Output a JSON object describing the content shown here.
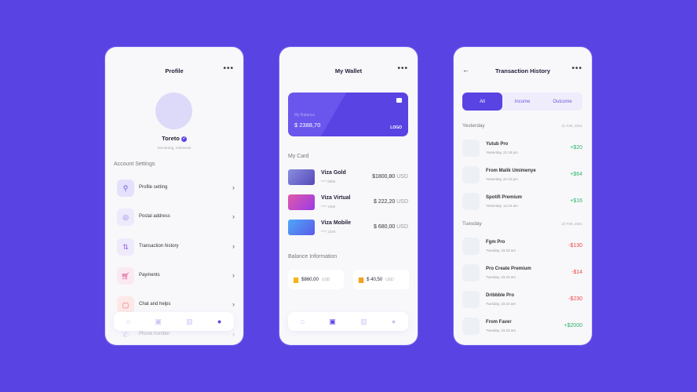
{
  "colors": {
    "background": "#5a43e3",
    "accent": "#5a43e3",
    "income": "#2fb36a",
    "outcome": "#ef4444"
  },
  "profile": {
    "title": "Profile",
    "more": "•••",
    "name": "Toreto",
    "location": "Semarang, Indonesia",
    "section": "Account Settings",
    "items": [
      {
        "label": "Profile setting",
        "icon": "user-icon"
      },
      {
        "label": "Postal address",
        "icon": "location-icon"
      },
      {
        "label": "Transaction history",
        "icon": "arrows-icon"
      },
      {
        "label": "Payments",
        "icon": "cart-icon"
      },
      {
        "label": "Chat and helps",
        "icon": "chat-icon"
      },
      {
        "label": "Phone number",
        "icon": "phone-icon"
      }
    ]
  },
  "wallet": {
    "title": "My Wallet",
    "more": "•••",
    "balance_label": "My Balance",
    "balance": "$ 2388,70",
    "card_logo": "LOGO",
    "my_card": "My Card",
    "cards": [
      {
        "name": "Viza Gold",
        "number": "**** 8888",
        "amount": "$1800,80",
        "currency": "USD"
      },
      {
        "name": "Viza Virtual",
        "number": "**** 1986",
        "amount": "$ 222,20",
        "currency": "USD"
      },
      {
        "name": "Viza Mobile",
        "number": "**** 2345",
        "amount": "$ 680,00",
        "currency": "USD"
      }
    ],
    "balance_info": "Balance Information",
    "income": {
      "amount": "$860,00",
      "currency": "USD"
    },
    "outcome": {
      "amount": "$ 40,50",
      "currency": "USD"
    }
  },
  "history": {
    "title": "Transaction History",
    "back": "←",
    "more": "•••",
    "tabs": [
      "All",
      "Income",
      "Outcome"
    ],
    "groups": [
      {
        "day": "Yesterday",
        "date": "21 Feb, 2021",
        "rows": [
          {
            "name": "Yutub Pro",
            "time": "Yesterday, 21:18 pm",
            "amount": "+$20"
          },
          {
            "name": "From Malik Umimenye",
            "time": "Yesterday, 21:10 pm",
            "amount": "+$64"
          },
          {
            "name": "Spotifi Premium",
            "time": "Yesterday, 12:10 am",
            "amount": "+$16"
          }
        ]
      },
      {
        "day": "Tuesday",
        "date": "23 Feb, 2021",
        "rows": [
          {
            "name": "Fgm Pro",
            "time": "Tuesday, 10:23 am",
            "amount": "-$130"
          },
          {
            "name": "Pro Create Premium",
            "time": "Tuesday, 10:23 am",
            "amount": "-$14"
          },
          {
            "name": "Dribbble Pro",
            "time": "Tuesday, 10:23 am",
            "amount": "-$230"
          },
          {
            "name": "From Faver",
            "time": "Tuesday, 10:23 am",
            "amount": "+$2000"
          }
        ]
      }
    ]
  }
}
